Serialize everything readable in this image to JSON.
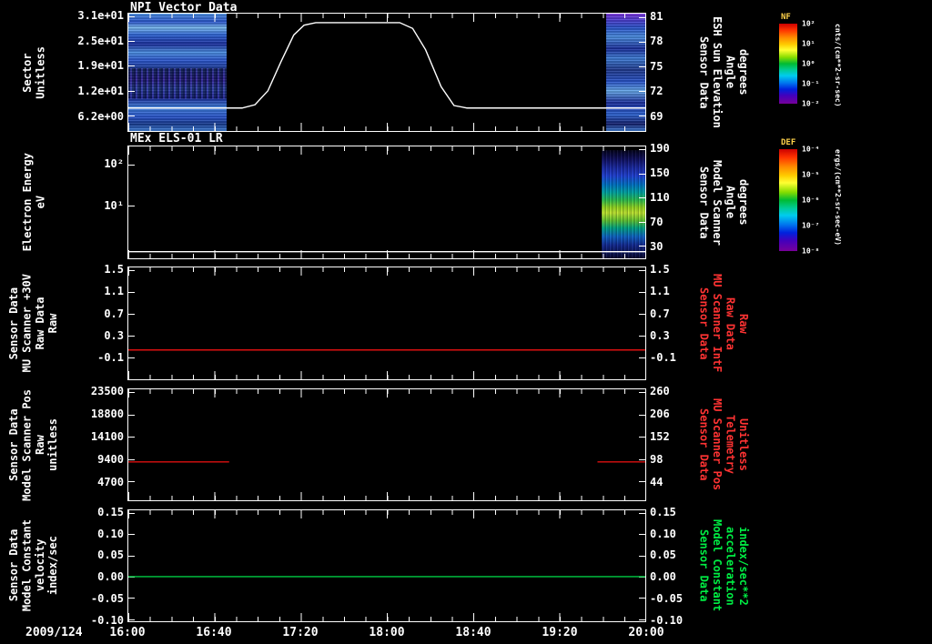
{
  "titles": {
    "panel1": "NPI Vector Data",
    "panel2": "MEx ELS-01 LR"
  },
  "xaxis": {
    "date_label": "2009/124",
    "xlim": [
      16,
      20
    ],
    "ticks": [
      {
        "h": 16.0,
        "label": "16:00"
      },
      {
        "h": 16.6667,
        "label": "16:40"
      },
      {
        "h": 17.3333,
        "label": "17:20"
      },
      {
        "h": 18.0,
        "label": "18:00"
      },
      {
        "h": 18.6667,
        "label": "18:40"
      },
      {
        "h": 19.3333,
        "label": "19:20"
      },
      {
        "h": 20.0,
        "label": "20:00"
      }
    ]
  },
  "colorbars": [
    {
      "name": "NF",
      "unit": "cnts/(cm**2-sr-sec)",
      "tick_labels": [
        "10²",
        "10¹",
        "10⁰",
        "10⁻¹",
        "10⁻²"
      ]
    },
    {
      "name": "DEF",
      "unit": "ergs/(cm**2-sr-sec-eV)",
      "tick_labels": [
        "10⁻⁴",
        "10⁻⁵",
        "10⁻⁶",
        "10⁻⁷",
        "10⁻⁸"
      ]
    }
  ],
  "chart_data": [
    {
      "type": "spectrogram+line",
      "title": "NPI Vector Data",
      "left_label_lines": [
        "Sector",
        "Unitless"
      ],
      "left_ticks": [
        {
          "v": 31.0,
          "label": "3.1e+01"
        },
        {
          "v": 24.8,
          "label": "2.5e+01"
        },
        {
          "v": 18.6,
          "label": "1.9e+01"
        },
        {
          "v": 12.4,
          "label": "1.2e+01"
        },
        {
          "v": 6.2,
          "label": "6.2e+00"
        }
      ],
      "ylim_left": [
        2.3,
        31.7
      ],
      "right_label_lines": [
        "Sensor Data",
        "ESH Sun Elevation",
        "Angle",
        "degrees"
      ],
      "right_label_color": "#ffffff",
      "right_ticks": [
        {
          "v": 81,
          "label": "81"
        },
        {
          "v": 78,
          "label": "78"
        },
        {
          "v": 75,
          "label": "75"
        },
        {
          "v": 72,
          "label": "72"
        },
        {
          "v": 69,
          "label": "69"
        }
      ],
      "ylim_right": [
        67.1,
        81.4
      ],
      "series": [
        {
          "name": "esh-sun-elevation-angle",
          "axis": "right",
          "color": "#ffffff",
          "x": [
            16.0,
            16.88,
            16.98,
            17.08,
            17.18,
            17.28,
            17.36,
            17.45,
            18.1,
            18.2,
            18.3,
            18.42,
            18.52,
            18.62,
            20.0
          ],
          "y": [
            69.9,
            69.9,
            70.3,
            72.0,
            75.5,
            78.8,
            80.0,
            80.3,
            80.3,
            79.6,
            77.0,
            72.5,
            70.2,
            69.9,
            69.9
          ]
        }
      ],
      "spectrograms": [
        {
          "x0": 16.0,
          "x1": 16.76,
          "style": "blue-a"
        },
        {
          "x0": 19.7,
          "x1": 20.0,
          "style": "blue-b"
        }
      ]
    },
    {
      "type": "spectrogram+line",
      "title": "MEx ELS-01 LR",
      "left_label_lines": [
        "Electron Energy",
        "eV"
      ],
      "left_ticks": [
        {
          "v": 2,
          "label": "10²"
        },
        {
          "v": 1,
          "label": "10¹"
        }
      ],
      "ylim_left": [
        -0.3,
        2.45
      ],
      "right_label_lines": [
        "Sensor Data",
        "Model Scanner",
        "Angle",
        "degrees"
      ],
      "right_label_color": "#ffffff",
      "right_ticks": [
        {
          "v": 190,
          "label": "190"
        },
        {
          "v": 150,
          "label": "150"
        },
        {
          "v": 110,
          "label": "110"
        },
        {
          "v": 70,
          "label": "70"
        },
        {
          "v": 30,
          "label": "30"
        }
      ],
      "ylim_right": [
        9,
        194.5
      ],
      "series": [
        {
          "name": "model-scanner-angle",
          "axis": "right",
          "color": "#ffffff",
          "x": [
            16.0,
            20.0
          ],
          "y": [
            20,
            20
          ]
        }
      ],
      "spectrograms": [
        {
          "x0": 19.66,
          "x1": 20.0,
          "style": "els"
        }
      ]
    },
    {
      "type": "line",
      "left_label_lines": [
        "Sensor Data",
        "MU Scanner +30V",
        "Raw Data",
        "Raw"
      ],
      "left_ticks": [
        {
          "v": 1.5,
          "label": "1.5"
        },
        {
          "v": 1.1,
          "label": "1.1"
        },
        {
          "v": 0.7,
          "label": "0.7"
        },
        {
          "v": 0.3,
          "label": "0.3"
        },
        {
          "v": -0.1,
          "label": "-0.1"
        }
      ],
      "ylim_left": [
        -0.51,
        1.55
      ],
      "right_label_lines": [
        "Sensor Data",
        "MU Scanner IntF",
        "Raw Data",
        "Raw"
      ],
      "right_label_color": "#ff3333",
      "right_ticks": [
        {
          "v": 1.5,
          "label": "1.5"
        },
        {
          "v": 1.1,
          "label": "1.1"
        },
        {
          "v": 0.7,
          "label": "0.7"
        },
        {
          "v": 0.3,
          "label": "0.3"
        },
        {
          "v": -0.1,
          "label": "-0.1"
        }
      ],
      "ylim_right": [
        -0.51,
        1.55
      ],
      "series": [
        {
          "name": "mu-scanner-intf-raw",
          "axis": "left",
          "color": "#dd1111",
          "x": [
            16.0,
            20.0
          ],
          "y": [
            0.03,
            0.03
          ]
        }
      ]
    },
    {
      "type": "line",
      "left_label_lines": [
        "Sensor Data",
        "Model Scanner Pos",
        "Raw",
        "unitless"
      ],
      "left_ticks": [
        {
          "v": 23500,
          "label": "23500"
        },
        {
          "v": 18800,
          "label": "18800"
        },
        {
          "v": 14100,
          "label": "14100"
        },
        {
          "v": 9400,
          "label": "9400"
        },
        {
          "v": 4700,
          "label": "4700"
        }
      ],
      "ylim_left": [
        700,
        24100
      ],
      "right_label_lines": [
        "Sensor Data",
        "MU Scanner Pos",
        "Telemetry",
        "Unitless"
      ],
      "right_label_color": "#ff3333",
      "right_ticks": [
        {
          "v": 260,
          "label": "260"
        },
        {
          "v": 206,
          "label": "206"
        },
        {
          "v": 152,
          "label": "152"
        },
        {
          "v": 98,
          "label": "98"
        },
        {
          "v": 44,
          "label": "44"
        }
      ],
      "ylim_right": [
        -2,
        267
      ],
      "series": [
        {
          "name": "scanner-pos-segment-1",
          "axis": "left",
          "color": "#dd1111",
          "x": [
            16.0,
            16.78
          ],
          "y": [
            8800,
            8800
          ]
        },
        {
          "name": "scanner-pos-segment-2",
          "axis": "left",
          "color": "#dd1111",
          "x": [
            19.63,
            20.0
          ],
          "y": [
            8800,
            8800
          ]
        }
      ]
    },
    {
      "type": "line",
      "left_label_lines": [
        "Sensor Data",
        "Model Constant",
        "velocity",
        "index/sec"
      ],
      "left_ticks": [
        {
          "v": 0.15,
          "label": "0.15"
        },
        {
          "v": 0.1,
          "label": "0.10"
        },
        {
          "v": 0.05,
          "label": "0.05"
        },
        {
          "v": 0.0,
          "label": "0.00"
        },
        {
          "v": -0.05,
          "label": "-0.05"
        },
        {
          "v": -0.1,
          "label": "-0.10"
        }
      ],
      "ylim_left": [
        -0.105,
        0.156
      ],
      "right_label_lines": [
        "Sensor Data",
        "Model Constant",
        "acceleration",
        "index/sec**2"
      ],
      "right_label_color": "#00ee44",
      "right_ticks": [
        {
          "v": 0.15,
          "label": "0.15"
        },
        {
          "v": 0.1,
          "label": "0.10"
        },
        {
          "v": 0.05,
          "label": "0.05"
        },
        {
          "v": 0.0,
          "label": "0.00"
        },
        {
          "v": -0.05,
          "label": "-0.05"
        },
        {
          "v": -0.1,
          "label": "-0.10"
        }
      ],
      "ylim_right": [
        -0.105,
        0.156
      ],
      "series": [
        {
          "name": "model-constant-velocity",
          "axis": "left",
          "color": "#00cc44",
          "x": [
            16.0,
            20.0
          ],
          "y": [
            0.0,
            0.0
          ]
        }
      ]
    }
  ]
}
